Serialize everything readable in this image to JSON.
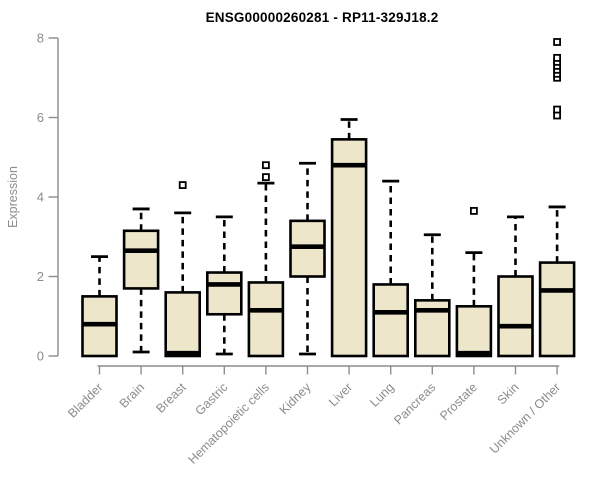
{
  "chart_data": {
    "type": "box",
    "title": "ENSG00000260281 - RP11-329J18.2",
    "ylabel": "Expression",
    "xlabel": "",
    "ylim": [
      0,
      8
    ],
    "yticks": [
      0,
      2,
      4,
      6,
      8
    ],
    "grid": false,
    "legend": "none",
    "categories": [
      "Bladder",
      "Brain",
      "Breast",
      "Gastric",
      "Hematopoietic cells",
      "Kidney",
      "Liver",
      "Lung",
      "Pancreas",
      "Prostate",
      "Skin",
      "Unknown / Other"
    ],
    "boxes": [
      {
        "category": "Bladder",
        "whisker_low": null,
        "q1": 0,
        "median": 0.8,
        "q3": 1.5,
        "whisker_high": 2.5,
        "outliers": []
      },
      {
        "category": "Brain",
        "whisker_low": 0.1,
        "q1": 1.7,
        "median": 2.65,
        "q3": 3.15,
        "whisker_high": 3.7,
        "outliers": []
      },
      {
        "category": "Breast",
        "whisker_low": null,
        "q1": 0,
        "median": 0.07,
        "q3": 1.6,
        "whisker_high": 3.6,
        "outliers": [
          4.3
        ]
      },
      {
        "category": "Gastric",
        "whisker_low": 0.05,
        "q1": 1.05,
        "median": 1.8,
        "q3": 2.1,
        "whisker_high": 3.5,
        "outliers": []
      },
      {
        "category": "Hematopoietic cells",
        "whisker_low": null,
        "q1": 0,
        "median": 1.15,
        "q3": 1.85,
        "whisker_high": 4.35,
        "outliers": [
          4.5,
          4.8
        ]
      },
      {
        "category": "Kidney",
        "whisker_low": 0.05,
        "q1": 2.0,
        "median": 2.75,
        "q3": 3.4,
        "whisker_high": 4.85,
        "outliers": []
      },
      {
        "category": "Liver",
        "whisker_low": null,
        "q1": 0,
        "median": 4.8,
        "q3": 5.45,
        "whisker_high": 5.95,
        "outliers": []
      },
      {
        "category": "Lung",
        "whisker_low": null,
        "q1": 0,
        "median": 1.1,
        "q3": 1.8,
        "whisker_high": 4.4,
        "outliers": []
      },
      {
        "category": "Pancreas",
        "whisker_low": null,
        "q1": 0,
        "median": 1.15,
        "q3": 1.4,
        "whisker_high": 3.05,
        "outliers": []
      },
      {
        "category": "Prostate",
        "whisker_low": null,
        "q1": 0,
        "median": 0.07,
        "q3": 1.25,
        "whisker_high": 2.6,
        "outliers": [
          3.65
        ]
      },
      {
        "category": "Skin",
        "whisker_low": null,
        "q1": 0,
        "median": 0.75,
        "q3": 2.0,
        "whisker_high": 3.5,
        "outliers": []
      },
      {
        "category": "Unknown / Other",
        "whisker_low": null,
        "q1": 0,
        "median": 1.65,
        "q3": 2.35,
        "whisker_high": 3.75,
        "outliers": [
          6.05,
          6.2,
          7.0,
          7.1,
          7.2,
          7.3,
          7.4,
          7.5,
          7.9
        ]
      }
    ],
    "colors": {
      "box_fill": "#EDE6CA",
      "box_stroke": "#000000",
      "median": "#000000",
      "whisker": "#000000",
      "outlier_stroke": "#000000",
      "axis": "#8C8C8C",
      "tick_label": "#8C8C8C",
      "title": "#000000",
      "background": "#FFFFFF"
    }
  }
}
